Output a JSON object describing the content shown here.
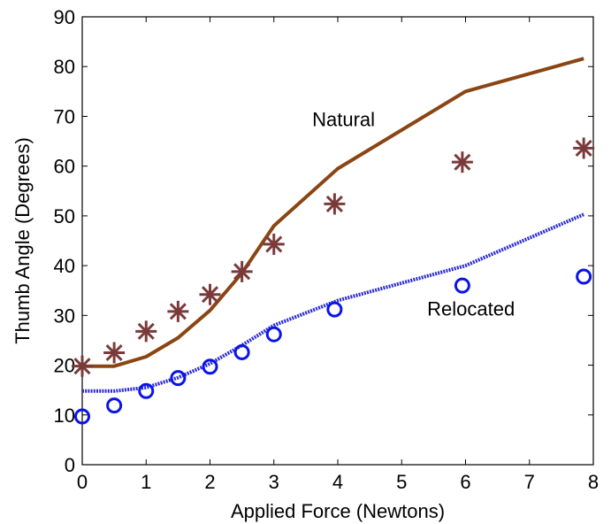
{
  "chart_data": {
    "type": "line",
    "title": "",
    "xlabel": "Applied Force (Newtons)",
    "ylabel": "Thumb Angle (Degrees)",
    "xlim": [
      0,
      8
    ],
    "ylim": [
      0,
      90
    ],
    "xticks": [
      "0",
      "1",
      "2",
      "3",
      "4",
      "5",
      "6",
      "7",
      "8"
    ],
    "yticks": [
      "0",
      "10",
      "20",
      "30",
      "40",
      "50",
      "60",
      "70",
      "80",
      "90"
    ],
    "grid": false,
    "annotations": [
      {
        "text": "Natural",
        "x": 3.6,
        "y": 68
      },
      {
        "text": "Relocated",
        "x": 5.4,
        "y": 30
      }
    ],
    "series": [
      {
        "style": "line",
        "color": "#8B4513",
        "x": [
          0,
          0.5,
          1,
          1.5,
          2,
          2.5,
          3,
          4,
          6,
          7.85
        ],
        "y": [
          19.8,
          19.8,
          21.7,
          25.5,
          31,
          38.5,
          48,
          59.5,
          75,
          81.6
        ]
      },
      {
        "style": "line-dashed",
        "color": "#2B2BD6",
        "x": [
          0,
          0.5,
          1,
          1.5,
          2,
          2.5,
          3,
          4,
          6,
          7.85
        ],
        "y": [
          14.8,
          14.8,
          15.5,
          17.5,
          20.3,
          24,
          28,
          33,
          40,
          50.3
        ]
      },
      {
        "style": "star-markers",
        "color": "#7B3A3A",
        "x": [
          0,
          0.5,
          1,
          1.5,
          2,
          2.5,
          3,
          3.95,
          5.95,
          7.85
        ],
        "y": [
          19.8,
          22.5,
          26.8,
          30.8,
          34.2,
          38.8,
          44.3,
          52.4,
          60.8,
          63.6
        ]
      },
      {
        "style": "circle-markers",
        "color": "#0A14E6",
        "x": [
          0,
          0.5,
          1,
          1.5,
          2,
          2.5,
          3,
          3.95,
          5.95,
          7.85
        ],
        "y": [
          9.7,
          11.9,
          14.8,
          17.4,
          19.7,
          22.6,
          26.2,
          31.2,
          36,
          37.8
        ]
      }
    ]
  }
}
